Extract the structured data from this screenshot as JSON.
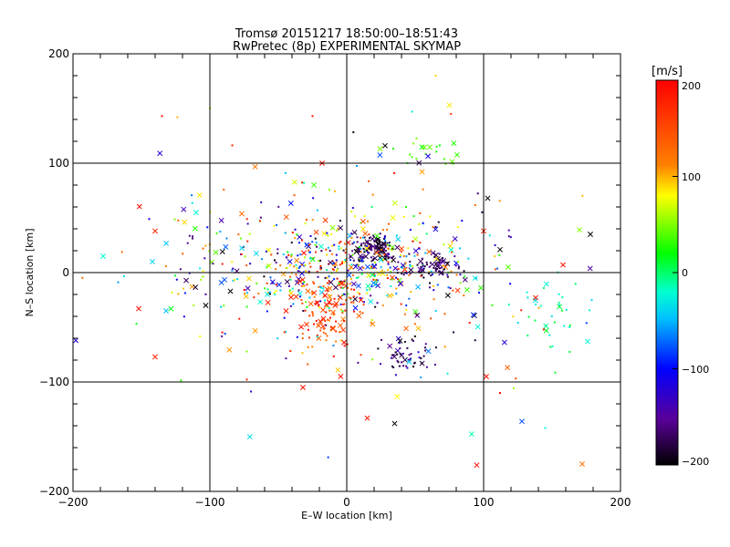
{
  "chart_data": {
    "type": "scatter",
    "title": "Tromsø 20151217 18:50:00–18:51:43",
    "subtitle": "RwPretec (8p) EXPERIMENTAL SKYMAP",
    "xlabel": "E–W location [km]",
    "ylabel": "N–S location [km]",
    "xlim": [
      -200,
      200
    ],
    "ylim": [
      -200,
      200
    ],
    "xticks": [
      "−200",
      "−100",
      "0",
      "100",
      "200"
    ],
    "yticks": [
      "−200",
      "−100",
      "0",
      "100",
      "200"
    ],
    "grid": true,
    "colorbar": {
      "label": "[m/s]",
      "range": [
        -200,
        200
      ],
      "ticks": [
        "200",
        "100",
        "0",
        "−100",
        "−200"
      ]
    },
    "markers": {
      "dot": "point echo (small)",
      "cross": "point echo (large)"
    },
    "clusters": [
      {
        "cx": 20,
        "cy": 22,
        "sx": 8,
        "sy": 6,
        "n": 120,
        "v": [
          -200,
          -150
        ]
      },
      {
        "cx": 0,
        "cy": 5,
        "sx": 40,
        "sy": 22,
        "n": 420,
        "v": [
          -200,
          200
        ]
      },
      {
        "cx": -15,
        "cy": -35,
        "sx": 12,
        "sy": 20,
        "n": 110,
        "v": [
          120,
          200
        ]
      },
      {
        "cx": 45,
        "cy": -75,
        "sx": 10,
        "sy": 8,
        "n": 55,
        "v": [
          -200,
          -120
        ]
      },
      {
        "cx": 65,
        "cy": 5,
        "sx": 10,
        "sy": 5,
        "n": 60,
        "v": [
          -200,
          -140
        ]
      },
      {
        "cx": 150,
        "cy": -30,
        "sx": 15,
        "sy": 20,
        "n": 35,
        "v": [
          -40,
          0
        ]
      },
      {
        "cx": 60,
        "cy": 115,
        "sx": 12,
        "sy": 8,
        "n": 20,
        "v": [
          0,
          30
        ]
      },
      {
        "cx": -70,
        "cy": 15,
        "sx": 35,
        "sy": 40,
        "n": 110,
        "v": [
          -200,
          200
        ]
      },
      {
        "cx": 30,
        "cy": 0,
        "sx": 90,
        "sy": 60,
        "n": 170,
        "v": [
          -200,
          200
        ]
      }
    ],
    "outliers": [
      {
        "x": -178,
        "y": 15,
        "v": -20,
        "m": "x"
      },
      {
        "x": -142,
        "y": 10,
        "v": -40,
        "m": "x"
      },
      {
        "x": -140,
        "y": 38,
        "v": 180,
        "m": "x"
      },
      {
        "x": -140,
        "y": -77,
        "v": 180,
        "m": "x"
      },
      {
        "x": -132,
        "y": -35,
        "v": -50,
        "m": "x"
      },
      {
        "x": -152,
        "y": -33,
        "v": 190,
        "m": "x"
      },
      {
        "x": -110,
        "y": 55,
        "v": -20,
        "m": "x"
      },
      {
        "x": -198,
        "y": -62,
        "v": -120,
        "m": "x"
      },
      {
        "x": -135,
        "y": 143,
        "v": 190,
        "m": "."
      },
      {
        "x": -100,
        "y": 150,
        "v": 40,
        "m": "."
      },
      {
        "x": -25,
        "y": 143,
        "v": 190,
        "m": "."
      },
      {
        "x": 75,
        "y": 153,
        "v": 70,
        "m": "x"
      },
      {
        "x": 65,
        "y": 180,
        "v": 80,
        "m": "."
      },
      {
        "x": 28,
        "y": 116,
        "v": -200,
        "m": "x"
      },
      {
        "x": -18,
        "y": 100,
        "v": 190,
        "m": "x"
      },
      {
        "x": 103,
        "y": 68,
        "v": -200,
        "m": "x"
      },
      {
        "x": 112,
        "y": 21,
        "v": -200,
        "m": "x"
      },
      {
        "x": 118,
        "y": 5,
        "v": 20,
        "m": "x"
      },
      {
        "x": 100,
        "y": 38,
        "v": 180,
        "m": "x"
      },
      {
        "x": 98,
        "y": -14,
        "v": 10,
        "m": "x"
      },
      {
        "x": 102,
        "y": -95,
        "v": 190,
        "m": "x"
      },
      {
        "x": 95,
        "y": -176,
        "v": 190,
        "m": "x"
      },
      {
        "x": 128,
        "y": -136,
        "v": -80,
        "m": "x"
      },
      {
        "x": 112,
        "y": -110,
        "v": 190,
        "m": "."
      },
      {
        "x": 145,
        "y": -142,
        "v": -20,
        "m": "."
      },
      {
        "x": 172,
        "y": -175,
        "v": 130,
        "m": "x"
      },
      {
        "x": 170,
        "y": 39,
        "v": 30,
        "m": "x"
      },
      {
        "x": 178,
        "y": 35,
        "v": -200,
        "m": "x"
      },
      {
        "x": 158,
        "y": 7,
        "v": 190,
        "m": "x"
      },
      {
        "x": 138,
        "y": -23,
        "v": 190,
        "m": "x"
      },
      {
        "x": 176,
        "y": -63,
        "v": -20,
        "m": "x"
      },
      {
        "x": 35,
        "y": -138,
        "v": -200,
        "m": "x"
      },
      {
        "x": 15,
        "y": -133,
        "v": 190,
        "m": "x"
      },
      {
        "x": -32,
        "y": -105,
        "v": 190,
        "m": "x"
      },
      {
        "x": -85,
        "y": -17,
        "v": -200,
        "m": "x"
      },
      {
        "x": -103,
        "y": -30,
        "v": -200,
        "m": "x"
      }
    ]
  }
}
